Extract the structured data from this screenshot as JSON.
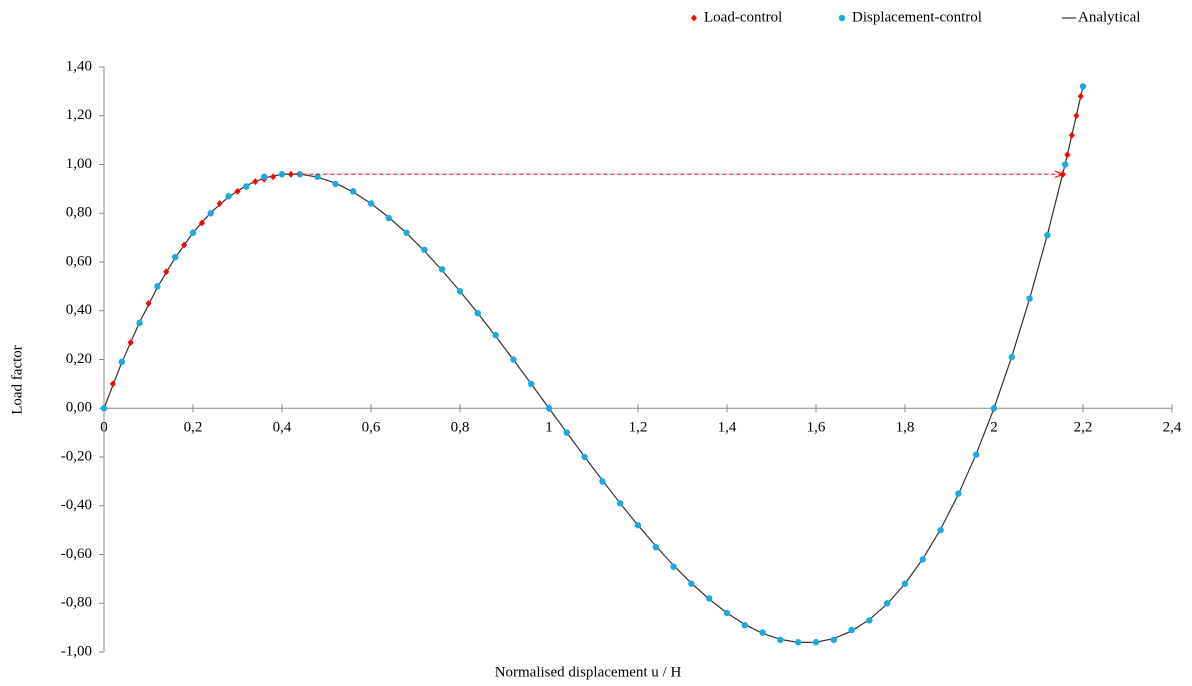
{
  "chart_data": {
    "type": "scatter",
    "x_label": "Normalised displacement  u / H",
    "y_label": "Load factor",
    "xlim": [
      0,
      2.4
    ],
    "ylim": [
      -1,
      1.4
    ],
    "xticks": [
      0,
      {
        "value": 0.2,
        "label": "0,2"
      },
      {
        "value": 0.4,
        "label": "0,4"
      },
      {
        "value": 0.6,
        "label": "0,6"
      },
      {
        "value": 0.8,
        "label": "0,8"
      },
      1,
      {
        "value": 1.2,
        "label": "1,2"
      },
      {
        "value": 1.4,
        "label": "1,4"
      },
      {
        "value": 1.6,
        "label": "1,6"
      },
      {
        "value": 1.8,
        "label": "1,8"
      },
      2,
      {
        "value": 2.2,
        "label": "2,2"
      },
      {
        "value": 2.4,
        "label": "2,4"
      }
    ],
    "yticks": [
      {
        "value": -1,
        "label": "-1,00"
      },
      {
        "value": -0.8,
        "label": "-0,80"
      },
      {
        "value": -0.6,
        "label": "-0,60"
      },
      {
        "value": -0.4,
        "label": "-0,40"
      },
      {
        "value": -0.2,
        "label": "-0,20"
      },
      {
        "value": 0,
        "label": "0,00"
      },
      {
        "value": 0.2,
        "label": "0,20"
      },
      {
        "value": 0.4,
        "label": "0,40"
      },
      {
        "value": 0.6,
        "label": "0,60"
      },
      {
        "value": 0.8,
        "label": "0,80"
      },
      {
        "value": 1,
        "label": "1,00"
      },
      {
        "value": 1.2,
        "label": "1,20"
      },
      {
        "value": 1.4,
        "label": "1,40"
      }
    ],
    "legend": "top-right",
    "series": [
      {
        "name": "Load-control",
        "color": "#ff0000",
        "mode": "diamond",
        "x": [
          0,
          0.02,
          0.04,
          0.06,
          0.08,
          0.1,
          0.12,
          0.14,
          0.16,
          0.18,
          0.2,
          0.22,
          0.24,
          0.26,
          0.28,
          0.3,
          0.32,
          0.34,
          0.36,
          0.38,
          0.4,
          0.42,
          2.155,
          2.165,
          2.175,
          2.185,
          2.195,
          2.2
        ],
        "values": [
          0,
          0.1,
          0.19,
          0.27,
          0.35,
          0.43,
          0.5,
          0.56,
          0.62,
          0.67,
          0.72,
          0.76,
          0.8,
          0.84,
          0.87,
          0.89,
          0.91,
          0.93,
          0.94,
          0.95,
          0.96,
          0.96,
          0.96,
          1.04,
          1.12,
          1.2,
          1.28,
          1.32
        ]
      },
      {
        "name": "Displacement-control",
        "color": "#1aa9e0",
        "mode": "circle",
        "x": [
          0,
          0.04,
          0.08,
          0.12,
          0.16,
          0.2,
          0.24,
          0.28,
          0.32,
          0.36,
          0.4,
          0.44,
          0.48,
          0.52,
          0.56,
          0.6,
          0.64,
          0.68,
          0.72,
          0.76,
          0.8,
          0.84,
          0.88,
          0.92,
          0.96,
          1.0,
          1.04,
          1.08,
          1.12,
          1.16,
          1.2,
          1.24,
          1.28,
          1.32,
          1.36,
          1.4,
          1.44,
          1.48,
          1.52,
          1.56,
          1.6,
          1.64,
          1.68,
          1.72,
          1.76,
          1.8,
          1.84,
          1.88,
          1.92,
          1.96,
          2.0,
          2.04,
          2.08,
          2.12,
          2.16,
          2.2
        ],
        "values": [
          0,
          0.19,
          0.35,
          0.5,
          0.62,
          0.72,
          0.8,
          0.87,
          0.91,
          0.95,
          0.96,
          0.96,
          0.95,
          0.92,
          0.89,
          0.84,
          0.78,
          0.72,
          0.65,
          0.57,
          0.48,
          0.39,
          0.3,
          0.2,
          0.1,
          0,
          -0.1,
          -0.2,
          -0.3,
          -0.39,
          -0.48,
          -0.57,
          -0.65,
          -0.72,
          -0.78,
          -0.84,
          -0.89,
          -0.92,
          -0.95,
          -0.96,
          -0.96,
          -0.95,
          -0.91,
          -0.87,
          -0.8,
          -0.72,
          -0.62,
          -0.5,
          -0.35,
          -0.19,
          0,
          0.21,
          0.45,
          0.71,
          1.0,
          1.32
        ]
      },
      {
        "name": "Analytical",
        "color": "#333333",
        "mode": "line",
        "x": [
          0,
          0.04,
          0.08,
          0.12,
          0.16,
          0.2,
          0.24,
          0.28,
          0.32,
          0.36,
          0.4,
          0.44,
          0.48,
          0.52,
          0.56,
          0.6,
          0.64,
          0.68,
          0.72,
          0.76,
          0.8,
          0.84,
          0.88,
          0.92,
          0.96,
          1.0,
          1.04,
          1.08,
          1.12,
          1.16,
          1.2,
          1.24,
          1.28,
          1.32,
          1.36,
          1.4,
          1.44,
          1.48,
          1.52,
          1.56,
          1.6,
          1.64,
          1.68,
          1.72,
          1.76,
          1.8,
          1.84,
          1.88,
          1.92,
          1.96,
          2.0,
          2.04,
          2.08,
          2.12,
          2.16,
          2.2
        ],
        "values": [
          0,
          0.188,
          0.353,
          0.496,
          0.618,
          0.72,
          0.803,
          0.867,
          0.914,
          0.945,
          0.96,
          0.961,
          0.948,
          0.924,
          0.887,
          0.84,
          0.783,
          0.718,
          0.645,
          0.565,
          0.48,
          0.39,
          0.296,
          0.199,
          0.1,
          0,
          -0.1,
          -0.199,
          -0.296,
          -0.39,
          -0.48,
          -0.565,
          -0.645,
          -0.718,
          -0.783,
          -0.84,
          -0.887,
          -0.924,
          -0.948,
          -0.961,
          -0.96,
          -0.945,
          -0.914,
          -0.867,
          -0.803,
          -0.72,
          -0.618,
          -0.496,
          -0.353,
          -0.188,
          0,
          0.212,
          0.449,
          0.712,
          1.002,
          1.32
        ]
      }
    ],
    "arrow": {
      "color": "#ff0000",
      "x": [
        0.43,
        2.155
      ],
      "y": [
        0.96,
        0.96
      ]
    }
  }
}
